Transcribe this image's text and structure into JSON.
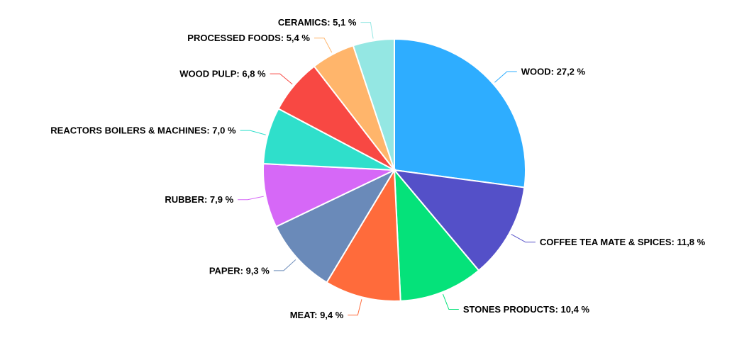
{
  "chart_data": {
    "type": "pie",
    "title": "",
    "start_angle_deg": 0,
    "direction": "clockwise",
    "slices": [
      {
        "label": "WOOD",
        "value": 27.2,
        "display": "WOOD: 27,2 %",
        "color": "#2eadff"
      },
      {
        "label": "COFFEE TEA MATE & SPICES",
        "value": 11.8,
        "display": "COFFEE TEA MATE & SPICES: 11,8 %",
        "color": "#5450c8"
      },
      {
        "label": "STONES PRODUCTS",
        "value": 10.4,
        "display": "STONES PRODUCTS: 10,4 %",
        "color": "#05e27a"
      },
      {
        "label": "MEAT",
        "value": 9.4,
        "display": "MEAT: 9,4 %",
        "color": "#ff6b3b"
      },
      {
        "label": "PAPER",
        "value": 9.3,
        "display": "PAPER: 9,3 %",
        "color": "#6a8ab9"
      },
      {
        "label": "RUBBER",
        "value": 7.9,
        "display": "RUBBER: 7,9 %",
        "color": "#d668f7"
      },
      {
        "label": "REACTORS BOILERS & MACHINES",
        "value": 7.0,
        "display": "REACTORS BOILERS & MACHINES: 7,0 %",
        "color": "#2fdfcb"
      },
      {
        "label": "WOOD PULP",
        "value": 6.8,
        "display": "WOOD PULP: 6,8 %",
        "color": "#f84843"
      },
      {
        "label": "PROCESSED FOODS",
        "value": 5.4,
        "display": "PROCESSED FOODS: 5,4 %",
        "color": "#ffb56b"
      },
      {
        "label": "CERAMICS",
        "value": 5.1,
        "display": "CERAMICS: 5,1 %",
        "color": "#94e7e3"
      }
    ]
  }
}
